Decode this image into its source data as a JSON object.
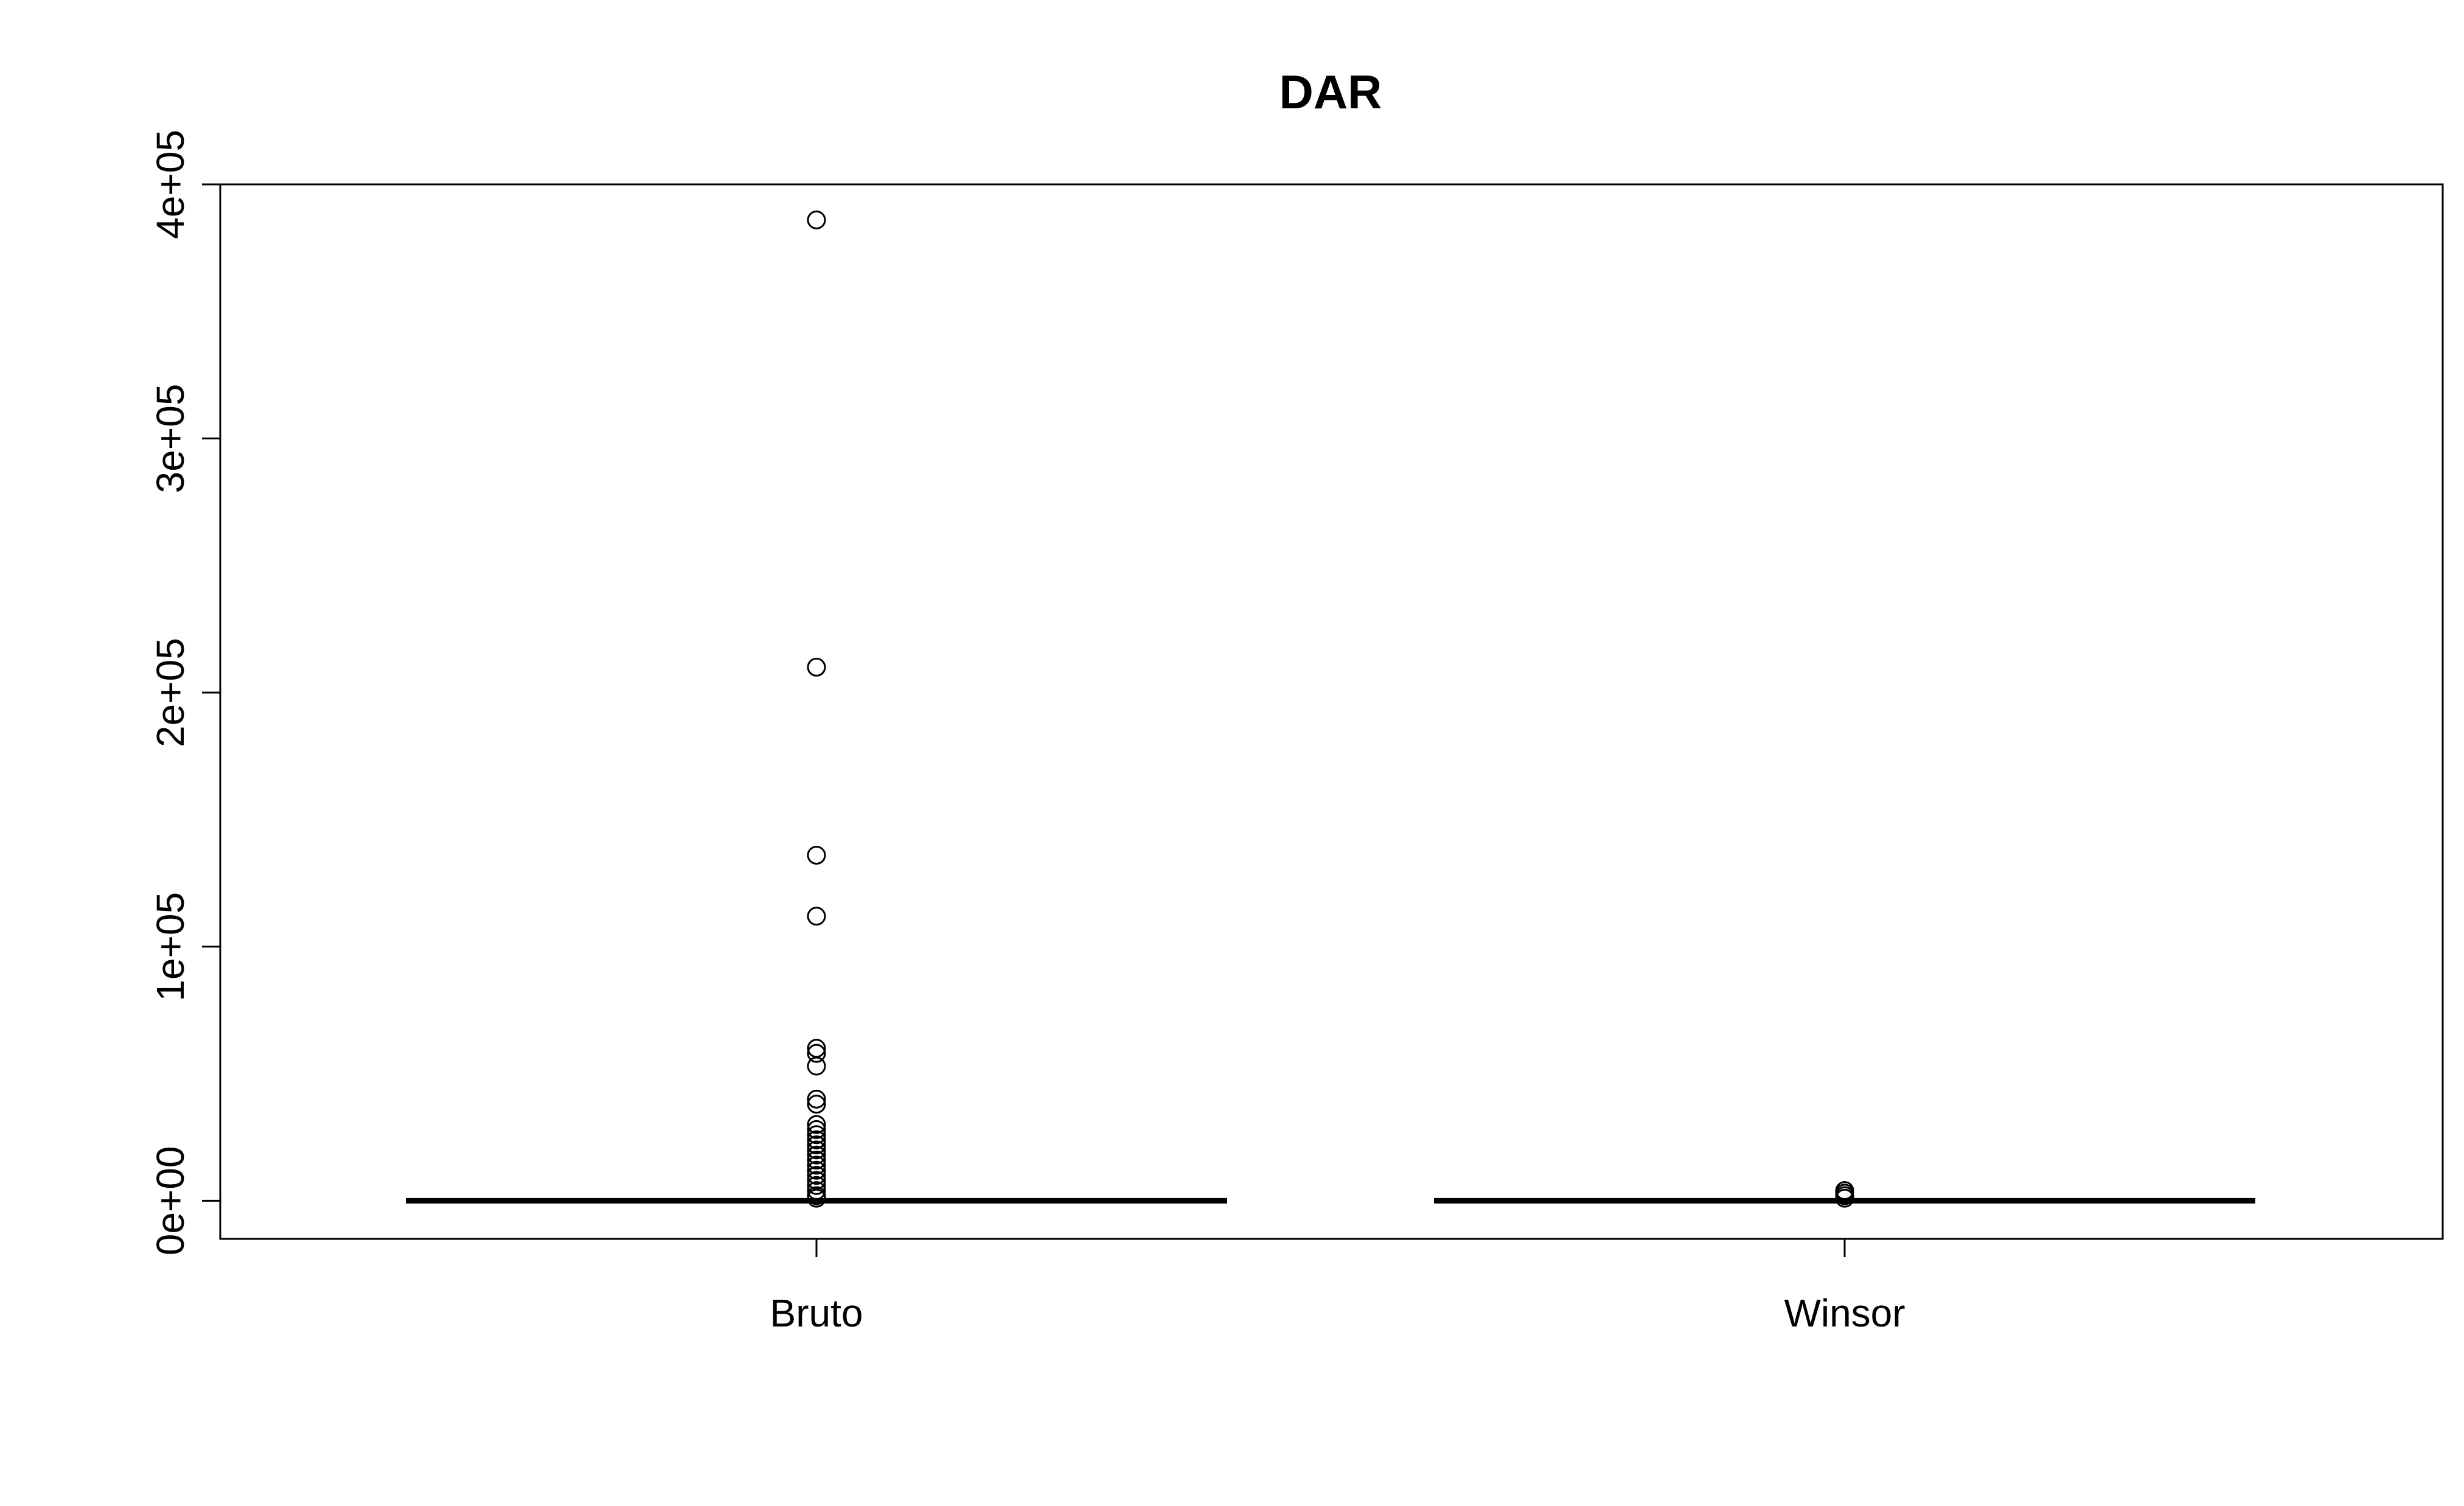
{
  "chart_data": {
    "type": "box",
    "title": "DAR",
    "xlabel": "",
    "ylabel": "",
    "ylim": [
      -15000,
      400000
    ],
    "yticks": [
      0,
      100000,
      200000,
      300000,
      400000
    ],
    "ytick_labels": [
      "0e+00",
      "1e+05",
      "2e+05",
      "3e+05",
      "4e+05"
    ],
    "grid": false,
    "categories": [
      "Bruto",
      "Winsor"
    ],
    "series": [
      {
        "category": "Bruto",
        "min": 0,
        "q1": 0,
        "median": 0,
        "q3": 0,
        "max": 0,
        "outliers": [
          386000,
          210000,
          136000,
          112000,
          60000,
          58000,
          53000,
          40000,
          38000,
          30000,
          28000,
          26000,
          24000,
          22000,
          20000,
          18000,
          16000,
          14000,
          12000,
          10000,
          8000,
          6000,
          4000,
          2000,
          1000
        ]
      },
      {
        "category": "Winsor",
        "min": 0,
        "q1": 0,
        "median": 0,
        "q3": 0,
        "max": 0,
        "outliers": [
          4000,
          3000,
          2000,
          1000
        ]
      }
    ]
  }
}
